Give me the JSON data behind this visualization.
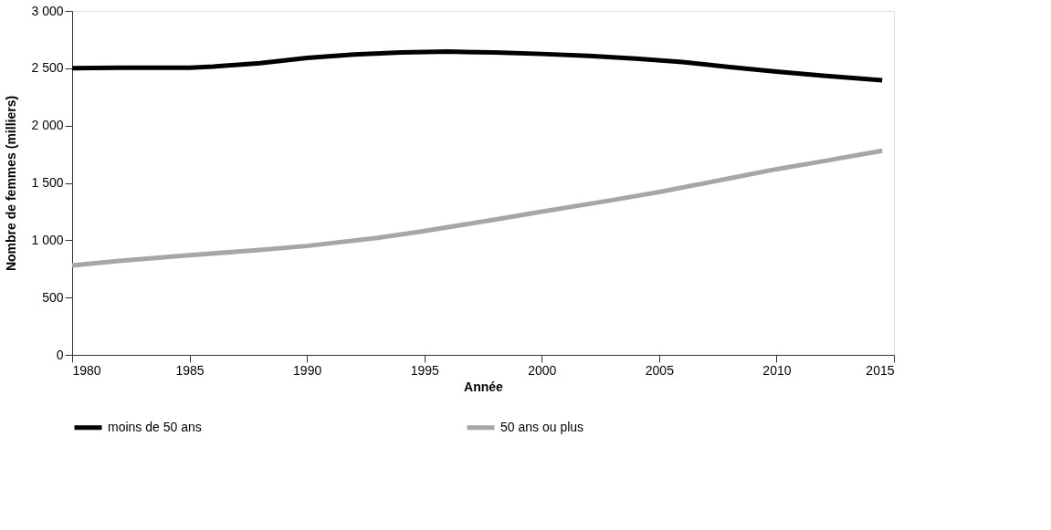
{
  "chart_data": {
    "type": "line",
    "xlabel": "Année",
    "ylabel": "Nombre de femmes (milliers)",
    "xlim": [
      1980,
      2015
    ],
    "xticks": [
      1980,
      1985,
      1990,
      1995,
      2000,
      2005,
      2010,
      2015
    ],
    "ylim": [
      0,
      3000
    ],
    "yticks": [
      0,
      500,
      {
        "value": 1000,
        "label": "1 000"
      },
      {
        "value": 1500,
        "label": "1 500"
      },
      {
        "value": 2000,
        "label": "2 000"
      },
      {
        "value": 2500,
        "label": "2 500"
      },
      {
        "value": 3000,
        "label": "3 000"
      }
    ],
    "grid": false,
    "legend": "bottom",
    "marker": "none",
    "line_style": "solid",
    "series": [
      {
        "name": "moins de 50 ans",
        "color": "#000000",
        "x": [
          1980,
          1982,
          1985,
          1986,
          1988,
          1990,
          1992,
          1994,
          1996,
          1998,
          2000,
          2002,
          2004,
          2006,
          2008,
          2010,
          2012,
          2014.5
        ],
        "values": [
          2500,
          2505,
          2505,
          2515,
          2545,
          2590,
          2620,
          2638,
          2645,
          2638,
          2625,
          2608,
          2585,
          2555,
          2510,
          2470,
          2435,
          2395
        ]
      },
      {
        "name": "50 ans ou plus",
        "color": "#a6a6a6",
        "x": [
          1980,
          1982,
          1985,
          1988,
          1990,
          1993,
          1995,
          1998,
          2000,
          2003,
          2005,
          2008,
          2010,
          2012,
          2014.5
        ],
        "values": [
          780,
          820,
          870,
          915,
          950,
          1020,
          1080,
          1180,
          1250,
          1350,
          1420,
          1540,
          1620,
          1690,
          1780
        ]
      }
    ]
  }
}
